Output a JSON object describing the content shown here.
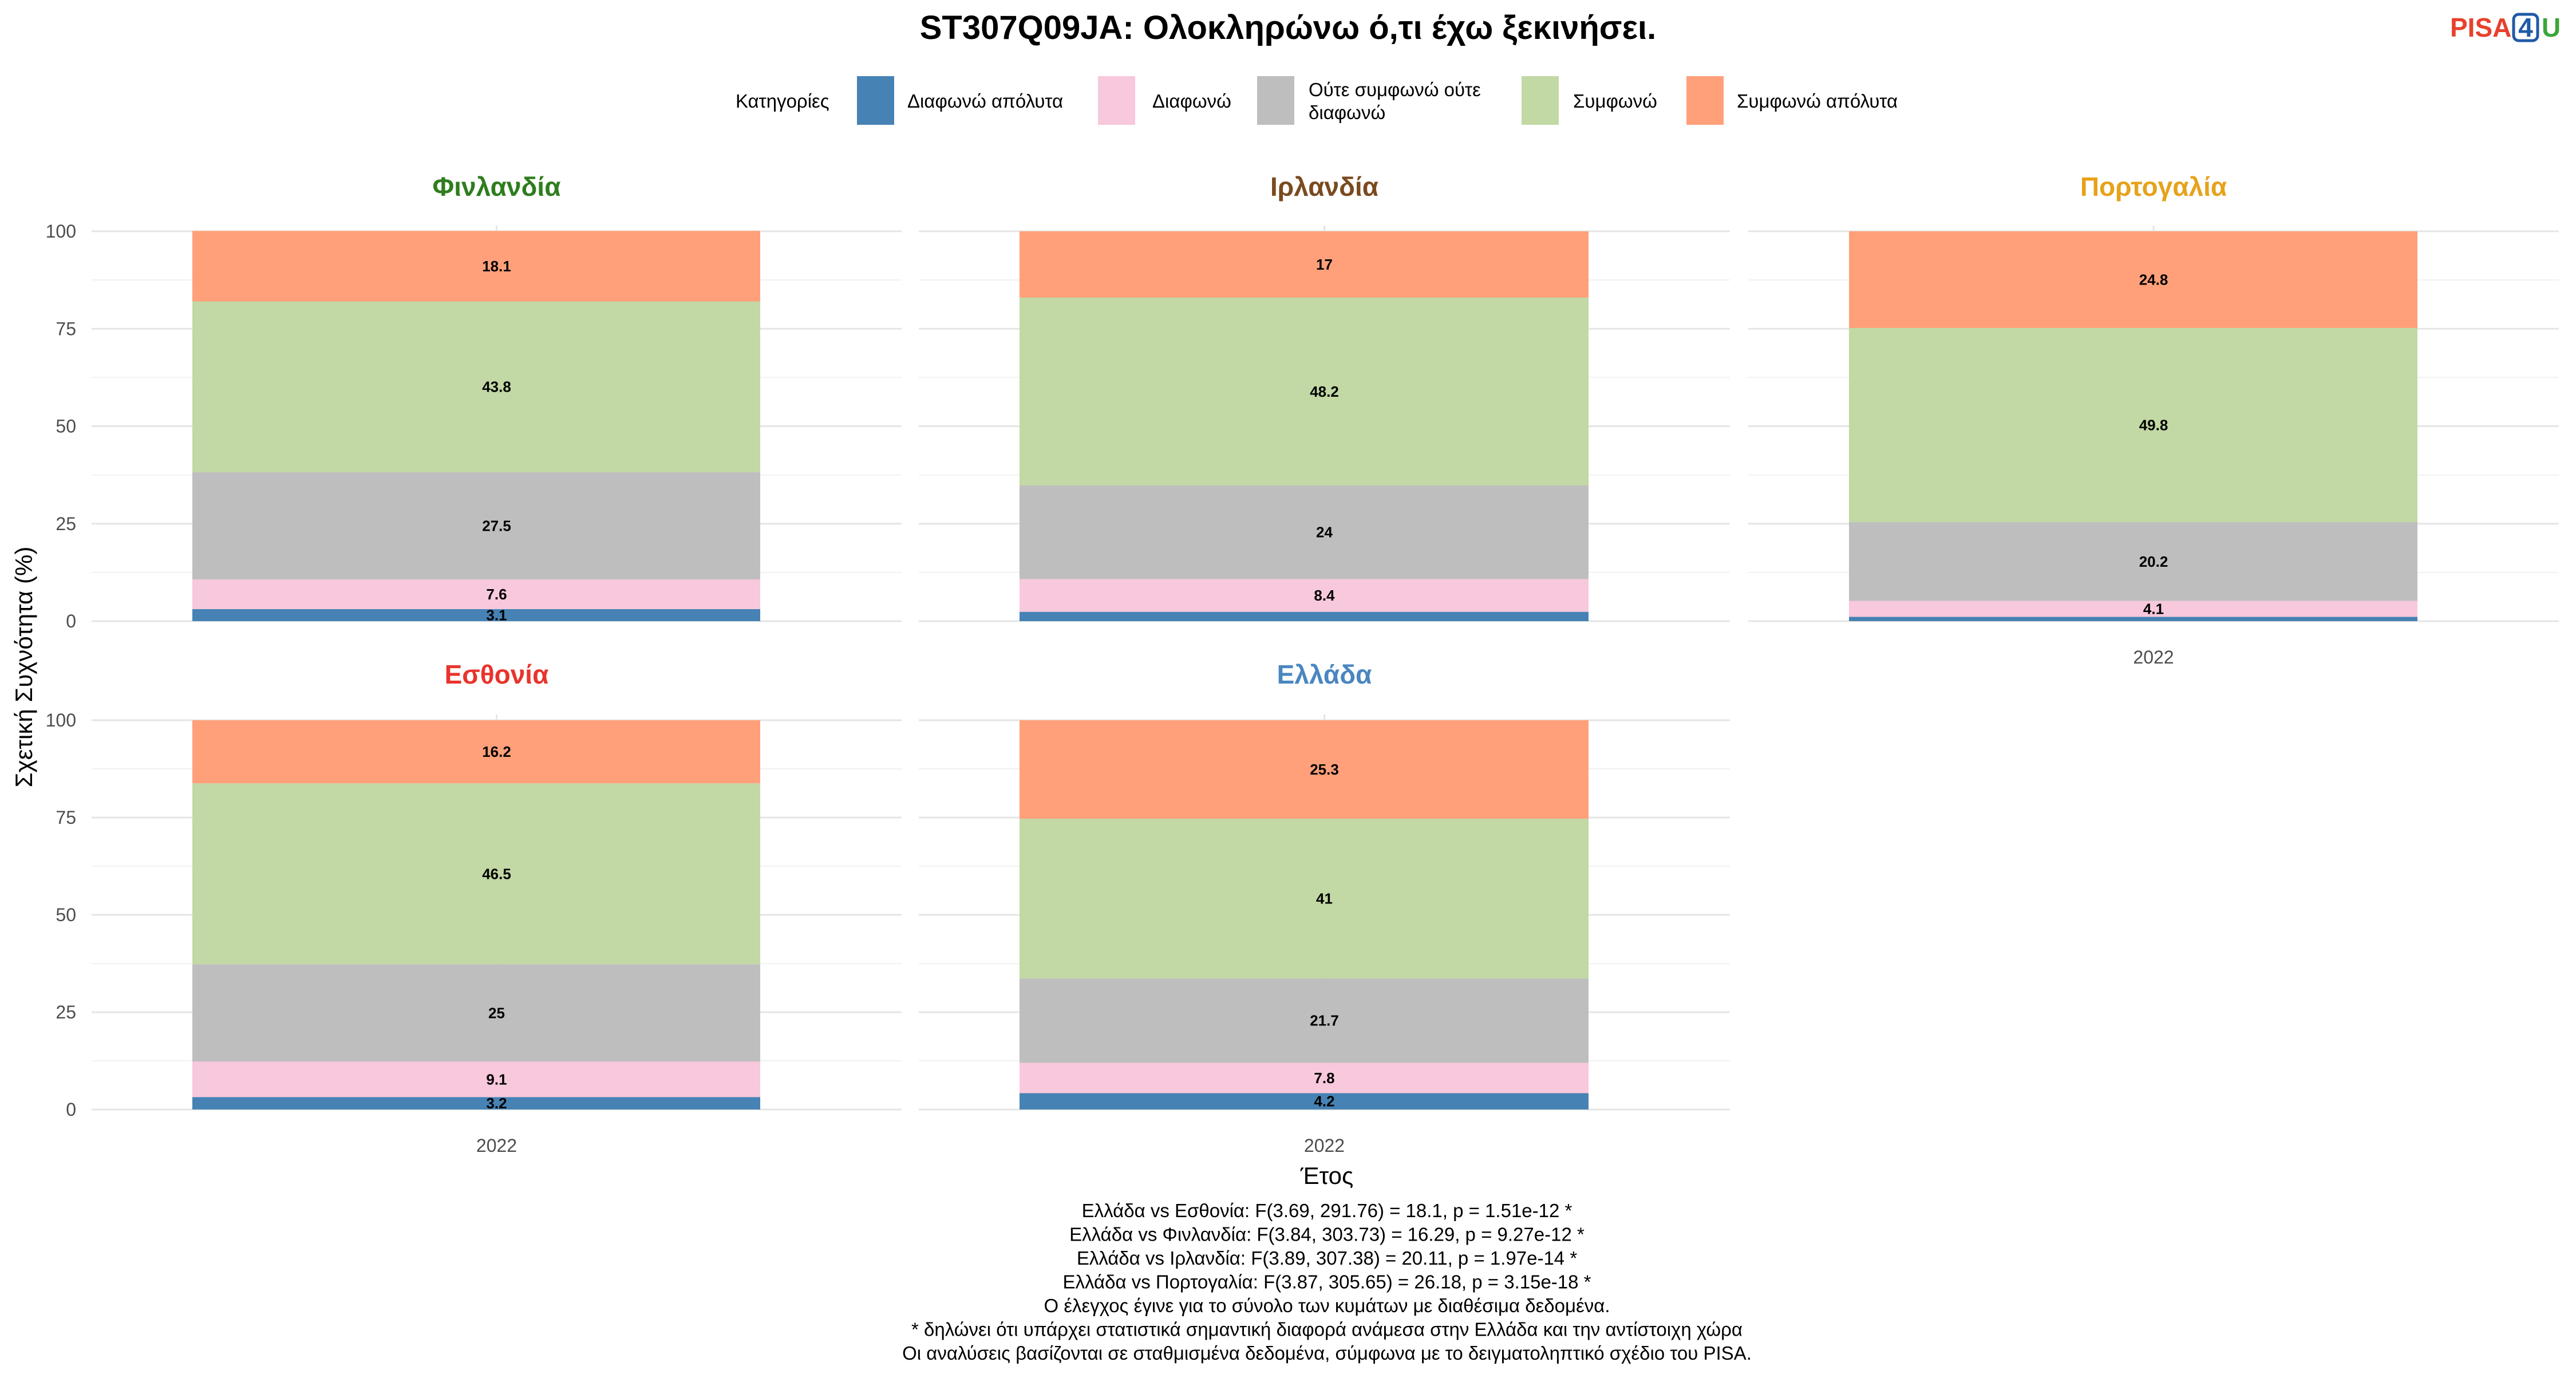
{
  "title": "ST307Q09JA: Ολοκληρώνω ό,τι έχω ξεκινήσει.",
  "logo": {
    "part1": "PISA",
    "part2": "4",
    "part3": "U",
    "colors": {
      "part1": "#e8412c",
      "part2": "#1f5aa6",
      "part3": "#3aa63a"
    }
  },
  "legend": {
    "title": "Κατηγορίες",
    "items": [
      {
        "label": "Διαφωνώ απόλυτα",
        "color": "#4682b4"
      },
      {
        "label": "Διαφωνώ",
        "color": "#f8c8dc"
      },
      {
        "label_line1": "Ούτε συμφωνώ ούτε",
        "label_line2": "διαφωνώ",
        "color": "#bebebe"
      },
      {
        "label": "Συμφωνώ",
        "color": "#c2d8a5"
      },
      {
        "label": "Συμφωνώ απόλυτα",
        "color": "#ffa07a"
      }
    ]
  },
  "axes": {
    "ylabel": "Σχετική Συχνότητα (%)",
    "xlabel": "Έτος",
    "y_ticks": [
      "0",
      "25",
      "50",
      "75",
      "100"
    ]
  },
  "chart_data": {
    "type": "bar",
    "stacked": true,
    "categories": [
      "Διαφωνώ απόλυτα",
      "Διαφωνώ",
      "Ούτε συμφωνώ ούτε διαφωνώ",
      "Συμφωνώ",
      "Συμφωνώ απόλυτα"
    ],
    "ylim": [
      0,
      100
    ],
    "x_tick": "2022",
    "panels": [
      {
        "name": "Φινλανδία",
        "color": "#2e7d1e",
        "year": "2022",
        "values": [
          3.1,
          7.6,
          27.5,
          43.8,
          18.1
        ],
        "labels": [
          "3.1",
          "7.6",
          "27.5",
          "43.8",
          "18.1"
        ],
        "show_x_tick": false
      },
      {
        "name": "Ιρλανδία",
        "color": "#7a4a1e",
        "year": "2022",
        "values": [
          2.4,
          8.4,
          24,
          48.2,
          17
        ],
        "labels": [
          "",
          "8.4",
          "24",
          "48.2",
          "17"
        ],
        "show_x_tick": false
      },
      {
        "name": "Πορτογαλία",
        "color": "#e6a21a",
        "year": "2022",
        "values": [
          1.1,
          4.1,
          20.2,
          49.8,
          24.8
        ],
        "labels": [
          "",
          "4.1",
          "20.2",
          "49.8",
          "24.8"
        ],
        "show_x_tick": true
      },
      {
        "name": "Εσθονία",
        "color": "#e8342c",
        "year": "2022",
        "values": [
          3.2,
          9.1,
          25,
          46.5,
          16.2
        ],
        "labels": [
          "3.2",
          "9.1",
          "25",
          "46.5",
          "16.2"
        ],
        "show_x_tick": true
      },
      {
        "name": "Ελλάδα",
        "color": "#4a86c0",
        "year": "2022",
        "values": [
          4.2,
          7.8,
          21.7,
          41,
          25.3
        ],
        "labels": [
          "4.2",
          "7.8",
          "21.7",
          "41",
          "25.3"
        ],
        "show_x_tick": true
      }
    ]
  },
  "notes": [
    "Ελλάδα vs Εσθονία: F(3.69, 291.76) = 18.1, p = 1.51e-12 *",
    "Ελλάδα vs Φινλανδία: F(3.84, 303.73) = 16.29, p = 9.27e-12 *",
    "Ελλάδα vs Ιρλανδία: F(3.89, 307.38) = 20.11, p = 1.97e-14 *",
    "Ελλάδα vs Πορτογαλία: F(3.87, 305.65) = 26.18, p = 3.15e-18 *",
    "Ο έλεγχος έγινε για το σύνολο των κυμάτων με διαθέσιμα δεδομένα.",
    "* δηλώνει ότι υπάρχει στατιστικά σημαντική διαφορά ανάμεσα στην Ελλάδα και την αντίστοιχη χώρα",
    "Οι αναλύσεις βασίζονται σε σταθμισμένα δεδομένα, σύμφωνα με το δειγματοληπτικό σχέδιο του PISA."
  ]
}
